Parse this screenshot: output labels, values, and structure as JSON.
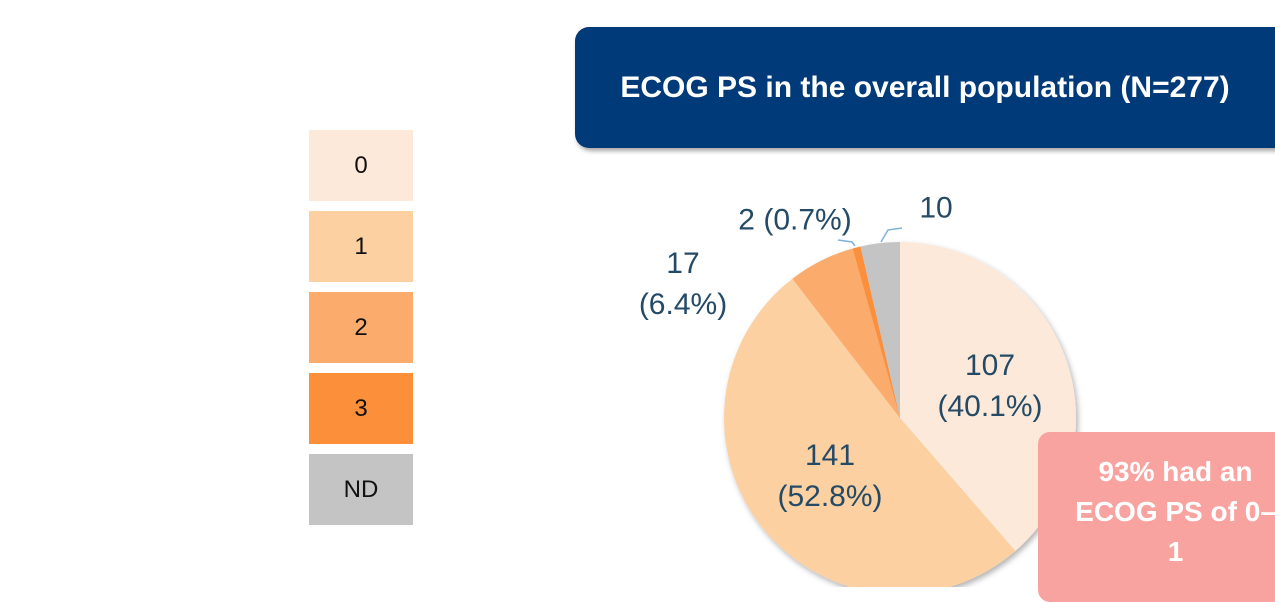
{
  "chart_data": {
    "type": "pie",
    "title": "ECOG PS in the overall population (N=277)",
    "categories": [
      "0",
      "1",
      "2",
      "3",
      "ND"
    ],
    "values": [
      107,
      141,
      17,
      2,
      10
    ],
    "value_labels": [
      "107\n(40.1%)",
      "141\n(52.8%)",
      "17\n(6.4%)",
      "2 (0.7%)",
      "10"
    ],
    "colors": [
      "#fde9d9",
      "#fcd0a1",
      "#fbab6c",
      "#fb8f3a",
      "#c4c4c4"
    ],
    "annotation": "93% had an ECOG PS of 0–1"
  }
}
